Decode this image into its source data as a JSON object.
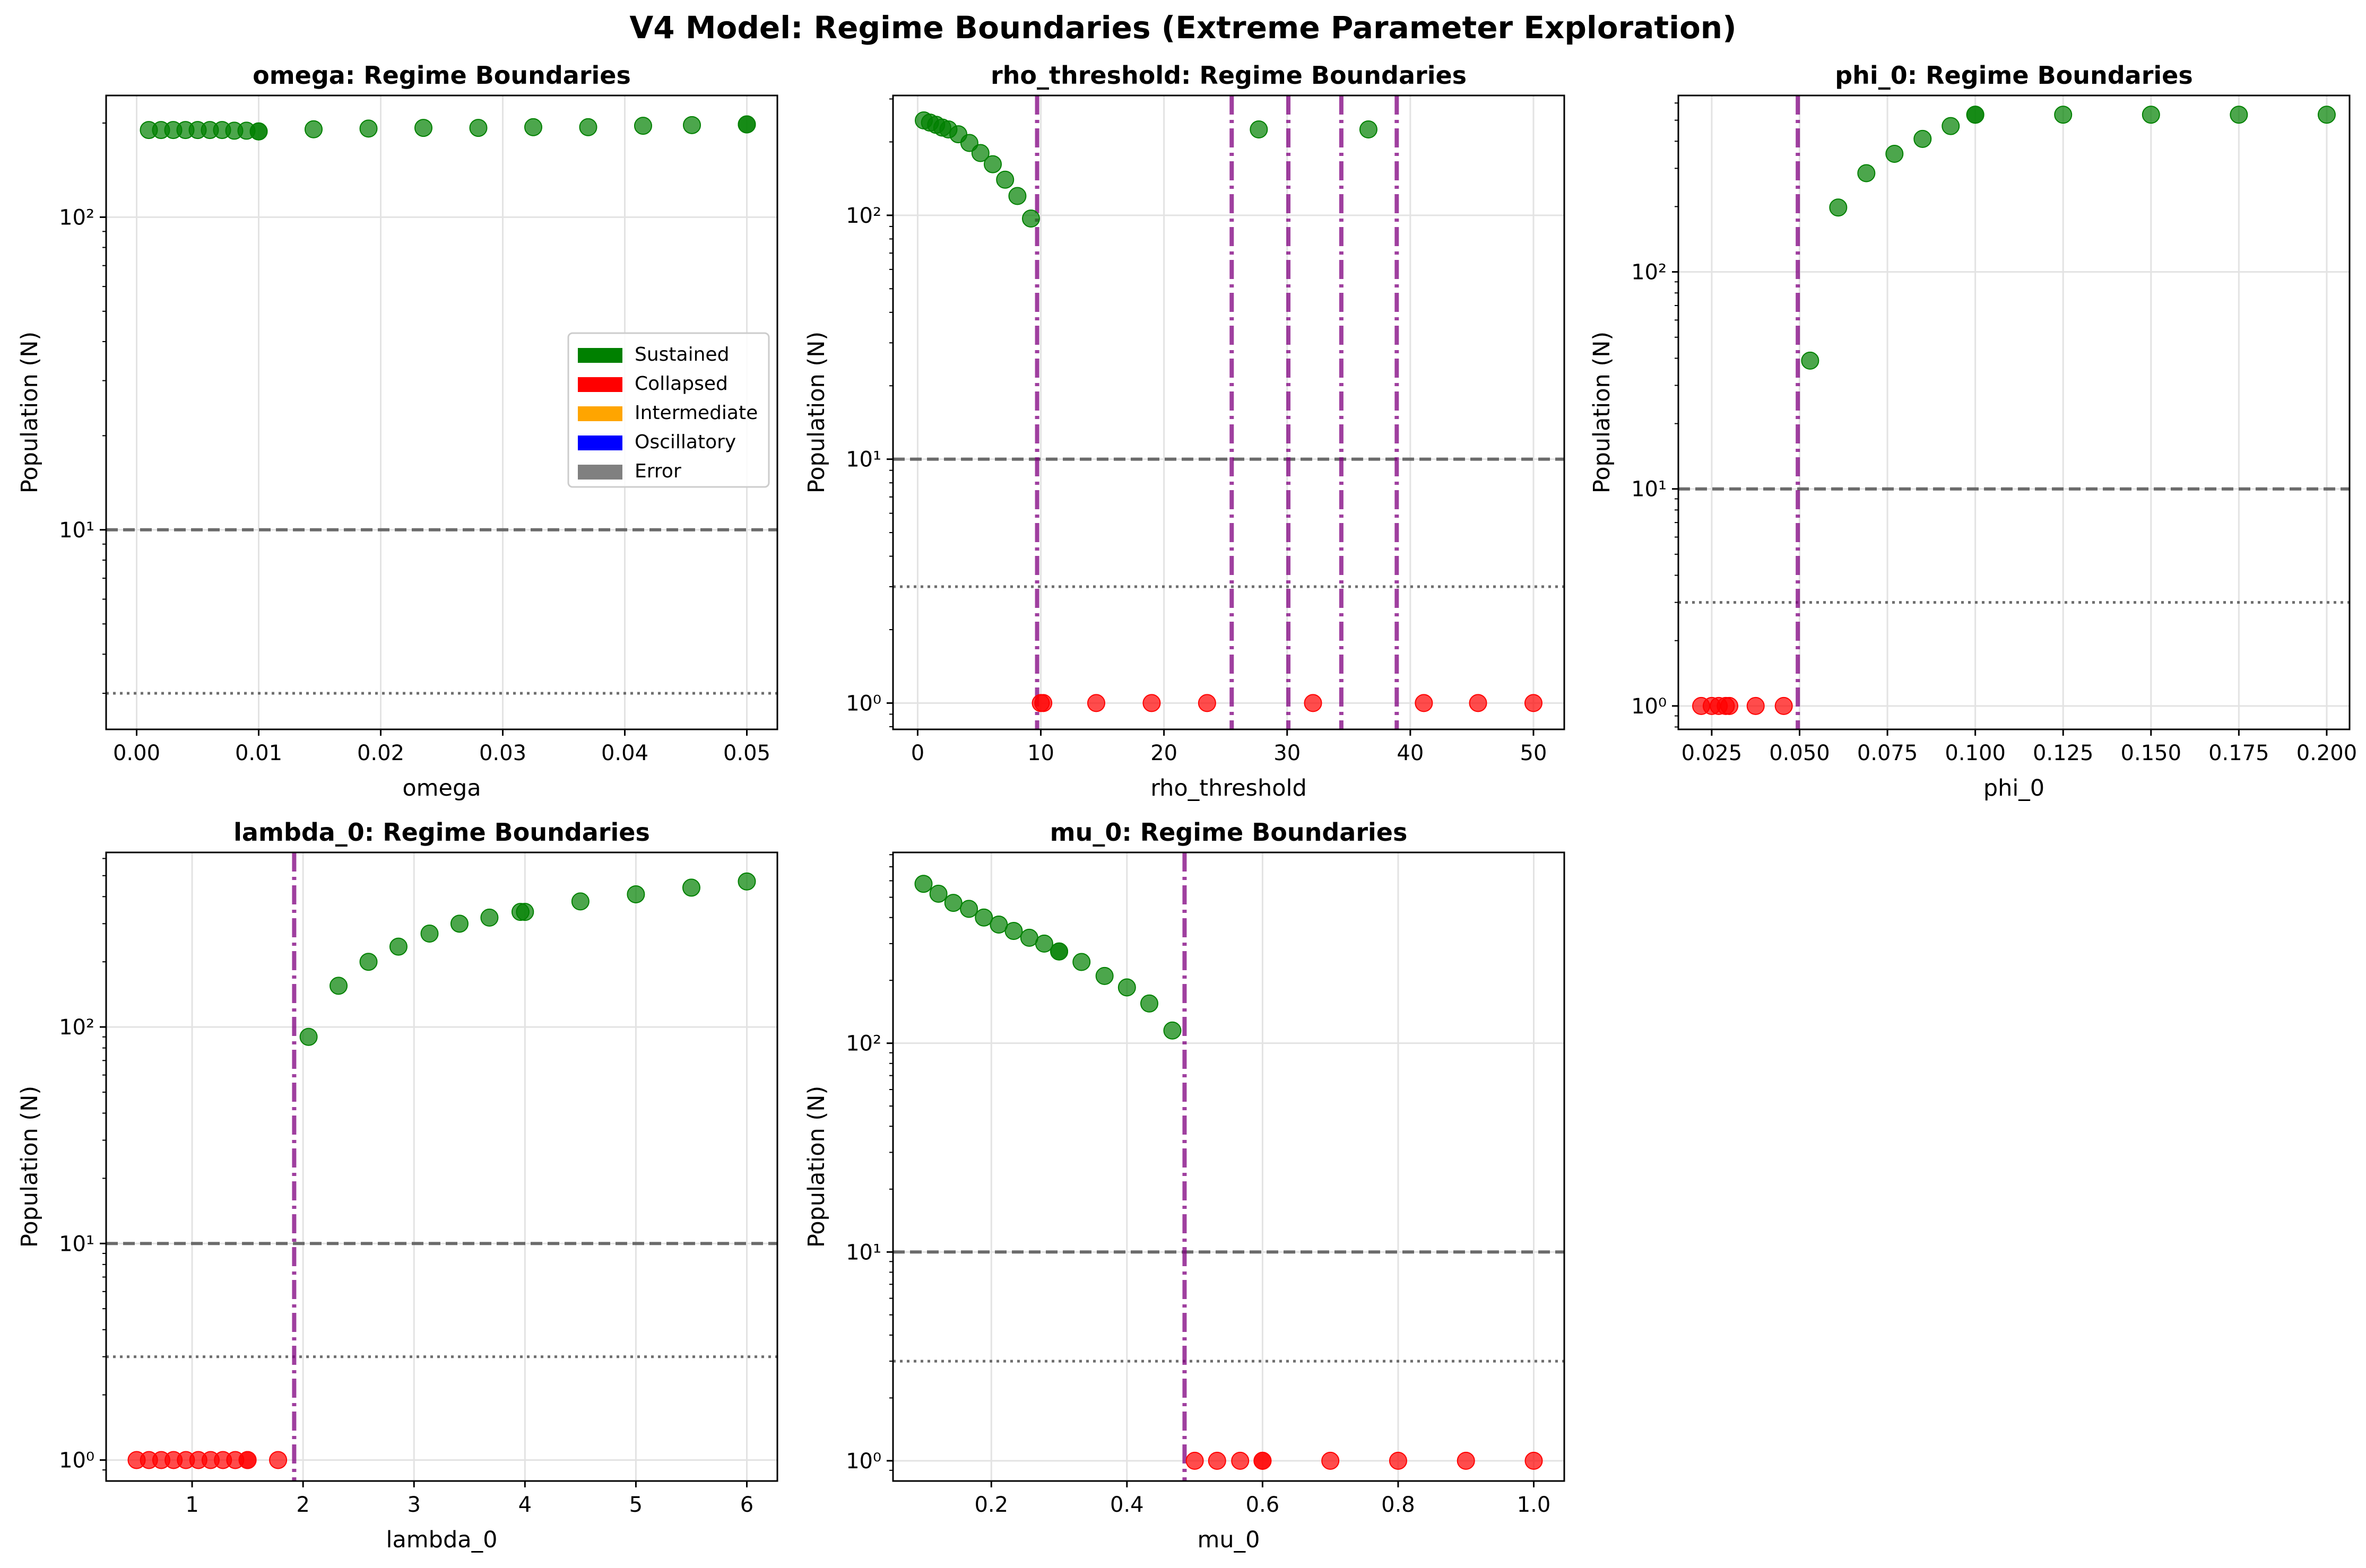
{
  "figure": {
    "title": "V4 Model: Regime Boundaries (Extreme Parameter Exploration)"
  },
  "colors": {
    "Sustained": "#008000",
    "Collapsed": "#ff0000",
    "Intermediate": "#ffa500",
    "Oscillatory": "#0000ff",
    "Error": "#808080",
    "boundary": "#800080",
    "threshold": "#555555"
  },
  "legend": {
    "placement": "center-right",
    "panel": "omega",
    "entries": [
      "Sustained",
      "Collapsed",
      "Intermediate",
      "Oscillatory",
      "Error"
    ]
  },
  "chart_data": [
    {
      "type": "scatter",
      "param": "omega",
      "title": "omega: Regime Boundaries",
      "xlabel": "omega",
      "ylabel": "Population (N)",
      "yscale": "log",
      "xlim": [
        -0.0025,
        0.0525
      ],
      "ylim": [
        2.3,
        245
      ],
      "xticks": [
        0.0,
        0.01,
        0.02,
        0.03,
        0.04,
        0.05
      ],
      "xtick_labels": [
        "0.00",
        "0.01",
        "0.02",
        "0.03",
        "0.04",
        "0.05"
      ],
      "yticks": [
        10,
        100
      ],
      "ytick_labels": [
        "10¹",
        "10²"
      ],
      "hlines": [
        {
          "y": 10,
          "style": "dashed"
        },
        {
          "y": 3,
          "style": "dotted"
        }
      ],
      "boundaries": [],
      "grid": true,
      "series": [
        {
          "name": "Sustained",
          "points": [
            [
              0.001,
              190
            ],
            [
              0.002,
              190
            ],
            [
              0.003,
              190
            ],
            [
              0.004,
              190
            ],
            [
              0.005,
              190
            ],
            [
              0.006,
              190
            ],
            [
              0.007,
              190
            ],
            [
              0.008,
              189
            ],
            [
              0.009,
              189
            ],
            [
              0.01,
              188
            ],
            [
              0.01,
              188
            ],
            [
              0.0145,
              191
            ],
            [
              0.019,
              192
            ],
            [
              0.0235,
              193
            ],
            [
              0.028,
              193
            ],
            [
              0.0325,
              194
            ],
            [
              0.037,
              194
            ],
            [
              0.0415,
              196
            ],
            [
              0.0455,
              197
            ],
            [
              0.05,
              198
            ],
            [
              0.05,
              198
            ]
          ]
        },
        {
          "name": "Collapsed",
          "points": []
        }
      ]
    },
    {
      "type": "scatter",
      "param": "rho_threshold",
      "title": "rho_threshold: Regime Boundaries",
      "xlabel": "rho_threshold",
      "ylabel": "Population (N)",
      "yscale": "log",
      "xlim": [
        -2.0,
        52.5
      ],
      "ylim": [
        0.78,
        310
      ],
      "xticks": [
        0,
        10,
        20,
        30,
        40,
        50
      ],
      "xtick_labels": [
        "0",
        "10",
        "20",
        "30",
        "40",
        "50"
      ],
      "yticks": [
        1,
        10,
        100
      ],
      "ytick_labels": [
        "10⁰",
        "10¹",
        "10²"
      ],
      "hlines": [
        {
          "y": 10,
          "style": "dashed"
        },
        {
          "y": 3,
          "style": "dotted"
        }
      ],
      "boundaries": [
        9.7,
        25.5,
        30.1,
        34.4,
        38.9
      ],
      "grid": true,
      "series": [
        {
          "name": "Sustained",
          "points": [
            [
              0.5,
              245
            ],
            [
              1.0,
              240
            ],
            [
              1.5,
              235
            ],
            [
              2.0,
              229
            ],
            [
              2.5,
              225
            ],
            [
              3.3,
              215
            ],
            [
              4.2,
              198
            ],
            [
              5.1,
              180
            ],
            [
              6.1,
              162
            ],
            [
              7.1,
              140
            ],
            [
              8.1,
              120
            ],
            [
              9.2,
              97
            ],
            [
              27.7,
              225
            ],
            [
              36.6,
              225
            ]
          ]
        },
        {
          "name": "Collapsed",
          "points": [
            [
              10.0,
              1
            ],
            [
              10.2,
              1
            ],
            [
              14.5,
              1
            ],
            [
              19.0,
              1
            ],
            [
              23.5,
              1
            ],
            [
              32.1,
              1
            ],
            [
              41.1,
              1
            ],
            [
              45.5,
              1
            ],
            [
              50.0,
              1
            ]
          ]
        }
      ]
    },
    {
      "type": "scatter",
      "param": "phi_0",
      "title": "phi_0: Regime Boundaries",
      "xlabel": "phi_0",
      "ylabel": "Population (N)",
      "yscale": "log",
      "xlim": [
        0.0155,
        0.2065
      ],
      "ylim": [
        0.78,
        650
      ],
      "xticks": [
        0.025,
        0.05,
        0.075,
        0.1,
        0.125,
        0.15,
        0.175,
        0.2
      ],
      "xtick_labels": [
        "0.025",
        "0.050",
        "0.075",
        "0.100",
        "0.125",
        "0.150",
        "0.175",
        "0.200"
      ],
      "yticks": [
        1,
        10,
        100
      ],
      "ytick_labels": [
        "10⁰",
        "10¹",
        "10²"
      ],
      "hlines": [
        {
          "y": 10,
          "style": "dashed"
        },
        {
          "y": 3,
          "style": "dotted"
        }
      ],
      "boundaries": [
        0.0495
      ],
      "grid": true,
      "series": [
        {
          "name": "Sustained",
          "points": [
            [
              0.053,
              39
            ],
            [
              0.061,
              198
            ],
            [
              0.069,
              285
            ],
            [
              0.077,
              350
            ],
            [
              0.085,
              410
            ],
            [
              0.093,
              470
            ],
            [
              0.1,
              530
            ],
            [
              0.1,
              530
            ],
            [
              0.125,
              530
            ],
            [
              0.15,
              530
            ],
            [
              0.175,
              530
            ],
            [
              0.2,
              530
            ]
          ]
        },
        {
          "name": "Collapsed",
          "points": [
            [
              0.022,
              1
            ],
            [
              0.025,
              1
            ],
            [
              0.027,
              1
            ],
            [
              0.029,
              1
            ],
            [
              0.03,
              1
            ],
            [
              0.0375,
              1
            ],
            [
              0.0455,
              1
            ]
          ]
        }
      ]
    },
    {
      "type": "scatter",
      "param": "lambda_0",
      "title": "lambda_0: Regime Boundaries",
      "xlabel": "lambda_0",
      "ylabel": "Population (N)",
      "yscale": "log",
      "xlim": [
        0.225,
        6.275
      ],
      "ylim": [
        0.8,
        640
      ],
      "xticks": [
        1,
        2,
        3,
        4,
        5,
        6
      ],
      "xtick_labels": [
        "1",
        "2",
        "3",
        "4",
        "5",
        "6"
      ],
      "yticks": [
        1,
        10,
        100
      ],
      "ytick_labels": [
        "10⁰",
        "10¹",
        "10²"
      ],
      "hlines": [
        {
          "y": 10,
          "style": "dashed"
        },
        {
          "y": 3,
          "style": "dotted"
        }
      ],
      "boundaries": [
        1.92
      ],
      "grid": true,
      "series": [
        {
          "name": "Sustained",
          "points": [
            [
              2.05,
              90
            ],
            [
              2.32,
              155
            ],
            [
              2.59,
              200
            ],
            [
              2.86,
              235
            ],
            [
              3.14,
              270
            ],
            [
              3.41,
              300
            ],
            [
              3.68,
              320
            ],
            [
              3.96,
              340
            ],
            [
              4.0,
              340
            ],
            [
              4.5,
              380
            ],
            [
              5.0,
              410
            ],
            [
              5.5,
              440
            ],
            [
              6.0,
              470
            ]
          ]
        },
        {
          "name": "Collapsed",
          "points": [
            [
              0.5,
              1
            ],
            [
              0.611,
              1
            ],
            [
              0.722,
              1
            ],
            [
              0.833,
              1
            ],
            [
              0.944,
              1
            ],
            [
              1.056,
              1
            ],
            [
              1.167,
              1
            ],
            [
              1.278,
              1
            ],
            [
              1.389,
              1
            ],
            [
              1.5,
              1
            ],
            [
              1.5,
              1
            ],
            [
              1.775,
              1
            ]
          ]
        }
      ]
    },
    {
      "type": "scatter",
      "param": "mu_0",
      "title": "mu_0: Regime Boundaries",
      "xlabel": "mu_0",
      "ylabel": "Population (N)",
      "yscale": "log",
      "xlim": [
        0.055,
        1.045
      ],
      "ylim": [
        0.8,
        820
      ],
      "xticks": [
        0.2,
        0.4,
        0.6,
        0.8,
        1.0
      ],
      "xtick_labels": [
        "0.2",
        "0.4",
        "0.6",
        "0.8",
        "1.0"
      ],
      "yticks": [
        1,
        10,
        100
      ],
      "ytick_labels": [
        "10⁰",
        "10¹",
        "10²"
      ],
      "hlines": [
        {
          "y": 10,
          "style": "dashed"
        },
        {
          "y": 3,
          "style": "dotted"
        }
      ],
      "boundaries": [
        0.485
      ],
      "grid": true,
      "series": [
        {
          "name": "Sustained",
          "points": [
            [
              0.1,
              580
            ],
            [
              0.122,
              520
            ],
            [
              0.144,
              470
            ],
            [
              0.167,
              440
            ],
            [
              0.189,
              400
            ],
            [
              0.211,
              370
            ],
            [
              0.233,
              345
            ],
            [
              0.256,
              320
            ],
            [
              0.278,
              300
            ],
            [
              0.3,
              275
            ],
            [
              0.3,
              275
            ],
            [
              0.333,
              245
            ],
            [
              0.367,
              210
            ],
            [
              0.4,
              185
            ],
            [
              0.433,
              155
            ],
            [
              0.467,
              115
            ]
          ]
        },
        {
          "name": "Collapsed",
          "points": [
            [
              0.5,
              1
            ],
            [
              0.533,
              1
            ],
            [
              0.567,
              1
            ],
            [
              0.6,
              1
            ],
            [
              0.6,
              1
            ],
            [
              0.7,
              1
            ],
            [
              0.8,
              1
            ],
            [
              0.9,
              1
            ],
            [
              1.0,
              1
            ]
          ]
        }
      ]
    }
  ]
}
